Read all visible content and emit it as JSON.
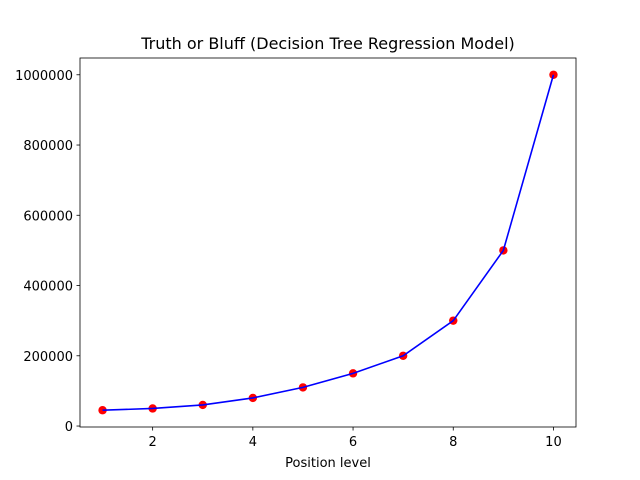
{
  "chart_data": {
    "type": "line",
    "title": "Truth or Bluff (Decision Tree Regression Model)",
    "x_label": "Position level",
    "x": [
      1,
      2,
      3,
      4,
      5,
      6,
      7,
      8,
      9,
      10
    ],
    "values": [
      45000,
      50000,
      60000,
      80000,
      110000,
      150000,
      200000,
      300000,
      500000,
      1000000
    ],
    "line_color": "#0000ff",
    "marker_color": "#ff0000",
    "xlim": [
      0.55,
      10.45
    ],
    "xticks": [
      2,
      4,
      6,
      8,
      10
    ],
    "ylim": [
      -2750,
      1047750
    ],
    "yticks": [
      0,
      200000,
      400000,
      600000,
      800000,
      1000000
    ]
  }
}
